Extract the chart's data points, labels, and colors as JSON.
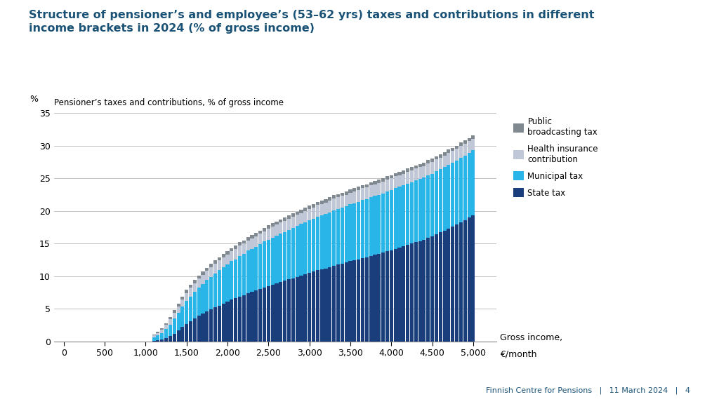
{
  "title": "Structure of pensioner’s and employee’s (53–62 yrs) taxes and contributions in different\nincome brackets in 2024 (% of gross income)",
  "title_color": "#1a5276",
  "subtitle": "Pensioner’s taxes and contributions, % of gross income",
  "ylabel": "%",
  "xlabel_line1": "Gross income,",
  "xlabel_line2": "€/month",
  "footer": "Finnish Centre for Pensions   |   11 March 2024   |   4",
  "categories": [
    1100,
    1150,
    1200,
    1250,
    1300,
    1350,
    1400,
    1450,
    1500,
    1550,
    1600,
    1650,
    1700,
    1750,
    1800,
    1850,
    1900,
    1950,
    2000,
    2050,
    2100,
    2150,
    2200,
    2250,
    2300,
    2350,
    2400,
    2450,
    2500,
    2550,
    2600,
    2650,
    2700,
    2750,
    2800,
    2850,
    2900,
    2950,
    3000,
    3050,
    3100,
    3150,
    3200,
    3250,
    3300,
    3350,
    3400,
    3450,
    3500,
    3550,
    3600,
    3650,
    3700,
    3750,
    3800,
    3850,
    3900,
    3950,
    4000,
    4050,
    4100,
    4150,
    4200,
    4250,
    4300,
    4350,
    4400,
    4450,
    4500,
    4550,
    4600,
    4650,
    4700,
    4750,
    4800,
    4850,
    4900,
    4950,
    5000
  ],
  "state_tax": [
    0.1,
    0.2,
    0.3,
    0.5,
    0.8,
    1.2,
    1.7,
    2.2,
    2.7,
    3.1,
    3.5,
    3.9,
    4.3,
    4.6,
    4.9,
    5.2,
    5.5,
    5.8,
    6.1,
    6.4,
    6.6,
    6.9,
    7.1,
    7.4,
    7.6,
    7.8,
    8.0,
    8.3,
    8.5,
    8.7,
    8.9,
    9.1,
    9.3,
    9.5,
    9.7,
    9.9,
    10.1,
    10.3,
    10.5,
    10.7,
    10.9,
    11.0,
    11.2,
    11.4,
    11.6,
    11.8,
    11.9,
    12.1,
    12.3,
    12.4,
    12.6,
    12.8,
    12.9,
    13.1,
    13.3,
    13.4,
    13.6,
    13.8,
    14.0,
    14.2,
    14.4,
    14.6,
    14.8,
    15.0,
    15.2,
    15.4,
    15.6,
    15.9,
    16.1,
    16.4,
    16.7,
    17.0,
    17.3,
    17.6,
    17.9,
    18.3,
    18.6,
    19.0,
    19.3
  ],
  "municipal_tax": [
    0.5,
    0.7,
    1.0,
    1.4,
    1.8,
    2.3,
    2.7,
    3.1,
    3.5,
    3.8,
    4.1,
    4.3,
    4.5,
    4.8,
    5.0,
    5.2,
    5.4,
    5.6,
    5.7,
    5.9,
    6.0,
    6.2,
    6.3,
    6.5,
    6.6,
    6.7,
    6.9,
    7.0,
    7.1,
    7.2,
    7.3,
    7.4,
    7.5,
    7.6,
    7.7,
    7.8,
    7.9,
    8.0,
    8.1,
    8.1,
    8.2,
    8.3,
    8.3,
    8.4,
    8.5,
    8.5,
    8.6,
    8.6,
    8.7,
    8.8,
    8.8,
    8.9,
    8.9,
    9.0,
    9.0,
    9.1,
    9.1,
    9.2,
    9.2,
    9.3,
    9.3,
    9.3,
    9.4,
    9.4,
    9.5,
    9.5,
    9.5,
    9.6,
    9.6,
    9.7,
    9.7,
    9.7,
    9.8,
    9.8,
    9.8,
    9.9,
    9.9,
    9.9,
    10.0
  ],
  "health_ins": [
    0.3,
    0.4,
    0.5,
    0.6,
    0.8,
    0.9,
    1.0,
    1.1,
    1.2,
    1.3,
    1.3,
    1.4,
    1.4,
    1.4,
    1.5,
    1.5,
    1.5,
    1.5,
    1.5,
    1.5,
    1.6,
    1.6,
    1.6,
    1.6,
    1.6,
    1.6,
    1.6,
    1.6,
    1.7,
    1.7,
    1.7,
    1.7,
    1.7,
    1.7,
    1.7,
    1.7,
    1.7,
    1.7,
    1.7,
    1.7,
    1.8,
    1.8,
    1.8,
    1.8,
    1.8,
    1.8,
    1.8,
    1.8,
    1.8,
    1.8,
    1.8,
    1.8,
    1.8,
    1.8,
    1.8,
    1.8,
    1.8,
    1.8,
    1.8,
    1.8,
    1.8,
    1.8,
    1.8,
    1.8,
    1.8,
    1.8,
    1.8,
    1.8,
    1.8,
    1.8,
    1.8,
    1.8,
    1.8,
    1.8,
    1.8,
    1.8,
    1.8,
    1.8,
    1.8
  ],
  "public_broadcast": [
    0.1,
    0.2,
    0.2,
    0.3,
    0.3,
    0.4,
    0.4,
    0.5,
    0.5,
    0.5,
    0.5,
    0.5,
    0.5,
    0.5,
    0.5,
    0.5,
    0.5,
    0.5,
    0.5,
    0.5,
    0.5,
    0.5,
    0.5,
    0.5,
    0.5,
    0.5,
    0.5,
    0.5,
    0.5,
    0.5,
    0.5,
    0.5,
    0.5,
    0.5,
    0.5,
    0.5,
    0.5,
    0.5,
    0.5,
    0.5,
    0.5,
    0.5,
    0.5,
    0.5,
    0.5,
    0.5,
    0.5,
    0.5,
    0.5,
    0.5,
    0.5,
    0.5,
    0.5,
    0.5,
    0.5,
    0.5,
    0.5,
    0.5,
    0.5,
    0.5,
    0.5,
    0.5,
    0.5,
    0.5,
    0.5,
    0.5,
    0.5,
    0.5,
    0.5,
    0.5,
    0.5,
    0.5,
    0.5,
    0.5,
    0.5,
    0.5,
    0.5,
    0.5,
    0.5
  ],
  "color_state": "#1a3d7c",
  "color_municipal": "#29b5e8",
  "color_health": "#c0c8d8",
  "color_broadcast": "#808890",
  "ylim": [
    0,
    35
  ],
  "yticks": [
    0,
    5,
    10,
    15,
    20,
    25,
    30,
    35
  ],
  "xticks": [
    0,
    500,
    1000,
    1500,
    2000,
    2500,
    3000,
    3500,
    4000,
    4500,
    5000
  ],
  "legend_labels": [
    "Public\nbroadcasting tax",
    "Health insurance\ncontribution",
    "Municipal tax",
    "State tax"
  ],
  "background_color": "#ffffff"
}
